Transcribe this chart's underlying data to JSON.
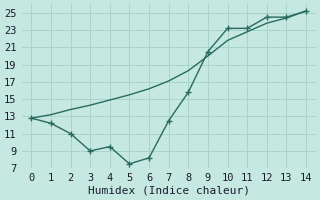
{
  "line1_x": [
    0,
    1,
    2,
    3,
    4,
    5,
    6,
    7,
    8,
    9,
    10,
    11,
    12,
    13,
    14
  ],
  "line1_y": [
    12.8,
    13.2,
    13.8,
    14.3,
    14.9,
    15.5,
    16.2,
    17.1,
    18.3,
    20.0,
    21.8,
    22.8,
    23.8,
    24.4,
    25.2
  ],
  "line2_x": [
    0,
    1,
    2,
    3,
    4,
    5,
    6,
    7,
    8,
    9,
    10,
    11,
    12,
    13,
    14
  ],
  "line2_y": [
    12.8,
    12.2,
    11.0,
    9.0,
    9.5,
    7.5,
    8.2,
    12.5,
    15.8,
    20.5,
    23.2,
    23.2,
    24.5,
    24.5,
    25.2
  ],
  "color": "#2a6b5f",
  "background_color": "#c5e8e0",
  "grid_color": "#a8d4cc",
  "xlabel": "Humidex (Indice chaleur)",
  "ylim": [
    7,
    26
  ],
  "xlim": [
    -0.5,
    14.5
  ],
  "yticks": [
    7,
    9,
    11,
    13,
    15,
    17,
    19,
    21,
    23,
    25
  ],
  "xticks": [
    0,
    1,
    2,
    3,
    4,
    5,
    6,
    7,
    8,
    9,
    10,
    11,
    12,
    13,
    14
  ],
  "font_family": "monospace",
  "xlabel_fontsize": 8,
  "tick_fontsize": 7.5
}
